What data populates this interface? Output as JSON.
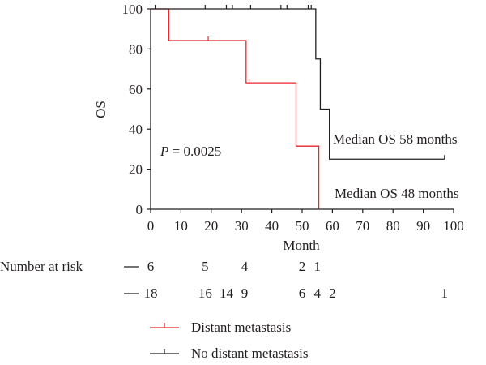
{
  "chart_data": {
    "type": "line",
    "subtype": "kaplan-meier",
    "xlabel": "Month",
    "ylabel": "OS",
    "xlim": [
      0,
      100
    ],
    "ylim": [
      0,
      100
    ],
    "x_ticks": [
      0,
      10,
      20,
      30,
      40,
      50,
      60,
      70,
      80,
      90,
      100
    ],
    "y_ticks": [
      0,
      20,
      40,
      60,
      80,
      100
    ],
    "x_tick_labels": [
      "0",
      "10",
      "20",
      "30",
      "40",
      "50",
      "60",
      "70",
      "80",
      "90",
      "100"
    ],
    "y_tick_labels": [
      "0",
      "20",
      "40",
      "60",
      "80",
      "100"
    ],
    "grid": false,
    "legend_position": "bottom",
    "series": [
      {
        "name": "Distant metastasis",
        "color": "#e8262d",
        "steps": [
          [
            0,
            100
          ],
          [
            6,
            84.2
          ],
          [
            31.5,
            63.1
          ],
          [
            48,
            31.5
          ],
          [
            55.5,
            0
          ]
        ],
        "end_x": 55.5,
        "censored": [
          [
            19,
            84.2
          ],
          [
            32.5,
            63.1
          ]
        ]
      },
      {
        "name": "No distant metastasis",
        "color": "#231f20",
        "steps": [
          [
            0,
            100
          ],
          [
            54.5,
            75
          ],
          [
            56,
            50
          ],
          [
            59,
            25
          ]
        ],
        "end_x": 97,
        "censored": [
          [
            1.5,
            100
          ],
          [
            18,
            100
          ],
          [
            25,
            100
          ],
          [
            27,
            100
          ],
          [
            33,
            100
          ],
          [
            43,
            100
          ],
          [
            45,
            100
          ],
          [
            52,
            100
          ],
          [
            53,
            100
          ],
          [
            97,
            25
          ]
        ]
      }
    ],
    "annotations": [
      {
        "text": "Median OS 58 months",
        "x": 59.5,
        "y": 33
      },
      {
        "text": "Median OS 48 months",
        "x": 60,
        "y": 8
      }
    ],
    "p_label": "P",
    "p_value": " = 0.0025",
    "risk_table": {
      "title": "Number at risk",
      "rows": [
        {
          "series": "Distant metastasis",
          "entries": [
            {
              "x": 0,
              "n": "6"
            },
            {
              "x": 18,
              "n": "5"
            },
            {
              "x": 31,
              "n": "4"
            },
            {
              "x": 50,
              "n": "2"
            },
            {
              "x": 55,
              "n": "1"
            }
          ]
        },
        {
          "series": "No distant metastasis",
          "entries": [
            {
              "x": 0,
              "n": "18"
            },
            {
              "x": 18,
              "n": "16"
            },
            {
              "x": 25,
              "n": "14"
            },
            {
              "x": 31,
              "n": "9"
            },
            {
              "x": 50,
              "n": "6"
            },
            {
              "x": 55,
              "n": "4"
            },
            {
              "x": 60,
              "n": "2"
            },
            {
              "x": 97,
              "n": "1"
            }
          ]
        }
      ]
    }
  }
}
